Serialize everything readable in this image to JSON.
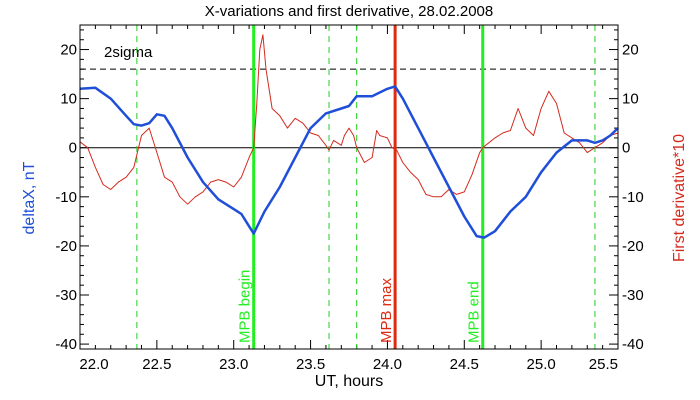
{
  "chart_data": {
    "type": "line",
    "title": "X-variations and first derivative, 28.02.2008",
    "xlabel": "UT, hours",
    "ylabel_left": "deltaX, nT",
    "ylabel_right": "First derivative*10",
    "xlim": [
      22.0,
      25.5
    ],
    "ylim": [
      -41,
      25
    ],
    "x_ticks": [
      "22.0",
      "22.5",
      "23.0",
      "23.5",
      "24.0",
      "24.5",
      "25.0",
      "25.5"
    ],
    "y_ticks_left": [
      "20",
      "10",
      "0",
      "-10",
      "-20",
      "-30",
      "-40"
    ],
    "y_ticks_right": [
      "20",
      "10",
      "0",
      "-10",
      "-20",
      "-30",
      "-40"
    ],
    "grid": false,
    "colors": {
      "deltaX": "#1f4fd8",
      "derivative": "#d42a1e",
      "mpb_begin_end": "#22ee22",
      "mpb_max": "#dd2a10",
      "dashed_markers": "#22cc22",
      "zero_line": "#000000",
      "sigma_line": "#000000"
    },
    "series": [
      {
        "key": "deltaX",
        "points": [
          [
            22.0,
            12
          ],
          [
            22.1,
            12.2
          ],
          [
            22.2,
            10
          ],
          [
            22.3,
            6.5
          ],
          [
            22.35,
            4.8
          ],
          [
            22.4,
            4.5
          ],
          [
            22.45,
            5
          ],
          [
            22.5,
            6.8
          ],
          [
            22.55,
            6.5
          ],
          [
            22.6,
            4
          ],
          [
            22.7,
            -2
          ],
          [
            22.8,
            -7
          ],
          [
            22.9,
            -10.5
          ],
          [
            23.0,
            -12.5
          ],
          [
            23.05,
            -13.5
          ],
          [
            23.1,
            -16
          ],
          [
            23.13,
            -17.5
          ],
          [
            23.2,
            -13
          ],
          [
            23.3,
            -8
          ],
          [
            23.4,
            -2
          ],
          [
            23.5,
            4
          ],
          [
            23.6,
            7
          ],
          [
            23.7,
            8
          ],
          [
            23.75,
            8.5
          ],
          [
            23.8,
            10.5
          ],
          [
            23.9,
            10.5
          ],
          [
            24.0,
            12
          ],
          [
            24.05,
            12.5
          ],
          [
            24.1,
            10
          ],
          [
            24.2,
            4
          ],
          [
            24.3,
            -2
          ],
          [
            24.4,
            -8
          ],
          [
            24.5,
            -14
          ],
          [
            24.58,
            -18
          ],
          [
            24.63,
            -18.3
          ],
          [
            24.7,
            -17
          ],
          [
            24.8,
            -13
          ],
          [
            24.9,
            -10
          ],
          [
            25.0,
            -5
          ],
          [
            25.1,
            -1
          ],
          [
            25.2,
            1.5
          ],
          [
            25.3,
            1.5
          ],
          [
            25.35,
            1
          ],
          [
            25.4,
            1.5
          ],
          [
            25.45,
            2.5
          ],
          [
            25.5,
            4
          ]
        ]
      },
      {
        "key": "derivative",
        "points": [
          [
            22.0,
            1.2
          ],
          [
            22.05,
            0
          ],
          [
            22.1,
            -4
          ],
          [
            22.15,
            -7.5
          ],
          [
            22.2,
            -8.5
          ],
          [
            22.25,
            -7
          ],
          [
            22.3,
            -6
          ],
          [
            22.35,
            -4
          ],
          [
            22.4,
            2.5
          ],
          [
            22.45,
            4
          ],
          [
            22.5,
            -1
          ],
          [
            22.55,
            -6
          ],
          [
            22.6,
            -7
          ],
          [
            22.65,
            -10
          ],
          [
            22.7,
            -11.5
          ],
          [
            22.75,
            -10
          ],
          [
            22.8,
            -9
          ],
          [
            22.85,
            -7
          ],
          [
            22.9,
            -6.5
          ],
          [
            22.95,
            -7
          ],
          [
            23.0,
            -8
          ],
          [
            23.05,
            -6
          ],
          [
            23.1,
            -2
          ],
          [
            23.13,
            0
          ],
          [
            23.15,
            9
          ],
          [
            23.17,
            20
          ],
          [
            23.19,
            23
          ],
          [
            23.21,
            16
          ],
          [
            23.25,
            8
          ],
          [
            23.3,
            6.5
          ],
          [
            23.35,
            4
          ],
          [
            23.4,
            6
          ],
          [
            23.45,
            5
          ],
          [
            23.5,
            3
          ],
          [
            23.55,
            2.5
          ],
          [
            23.6,
            0.5
          ],
          [
            23.62,
            -0.5
          ],
          [
            23.65,
            1.5
          ],
          [
            23.7,
            0.5
          ],
          [
            23.72,
            2.5
          ],
          [
            23.75,
            4
          ],
          [
            23.78,
            2.5
          ],
          [
            23.8,
            0
          ],
          [
            23.85,
            -3
          ],
          [
            23.9,
            -2
          ],
          [
            23.93,
            3.5
          ],
          [
            23.95,
            2.5
          ],
          [
            24.0,
            2
          ],
          [
            24.03,
            0
          ],
          [
            24.06,
            -0.5
          ],
          [
            24.1,
            -3
          ],
          [
            24.15,
            -5
          ],
          [
            24.2,
            -6.5
          ],
          [
            24.25,
            -9.5
          ],
          [
            24.3,
            -10
          ],
          [
            24.35,
            -10
          ],
          [
            24.4,
            -8.5
          ],
          [
            24.45,
            -9.5
          ],
          [
            24.5,
            -9
          ],
          [
            24.55,
            -5.5
          ],
          [
            24.6,
            -1
          ],
          [
            24.62,
            0
          ],
          [
            24.7,
            2
          ],
          [
            24.75,
            3
          ],
          [
            24.8,
            3.5
          ],
          [
            24.85,
            8
          ],
          [
            24.9,
            4
          ],
          [
            24.95,
            2.5
          ],
          [
            25.0,
            8
          ],
          [
            25.05,
            11.5
          ],
          [
            25.1,
            9
          ],
          [
            25.15,
            3
          ],
          [
            25.2,
            2
          ],
          [
            25.25,
            1
          ],
          [
            25.3,
            -1
          ],
          [
            25.35,
            0
          ],
          [
            25.4,
            1
          ],
          [
            25.45,
            2.5
          ],
          [
            25.5,
            3
          ]
        ]
      }
    ],
    "reference_lines": [
      {
        "label": "2sigma",
        "y": 16,
        "style": "dashed"
      },
      {
        "y": 0,
        "style": "solid"
      }
    ],
    "vertical_markers": [
      {
        "x": 23.13,
        "label": "MPB begin",
        "style": "solid",
        "color_key": "mpb_begin_end"
      },
      {
        "x": 24.05,
        "label": "MPB max",
        "style": "solid",
        "color_key": "mpb_max"
      },
      {
        "x": 24.62,
        "label": "MPB end",
        "style": "solid",
        "color_key": "mpb_begin_end"
      },
      {
        "x": 22.37,
        "style": "dashed",
        "color_key": "dashed_markers"
      },
      {
        "x": 23.62,
        "style": "dashed",
        "color_key": "dashed_markers"
      },
      {
        "x": 23.8,
        "style": "dashed",
        "color_key": "dashed_markers"
      },
      {
        "x": 25.35,
        "style": "dashed",
        "color_key": "dashed_markers"
      }
    ]
  }
}
